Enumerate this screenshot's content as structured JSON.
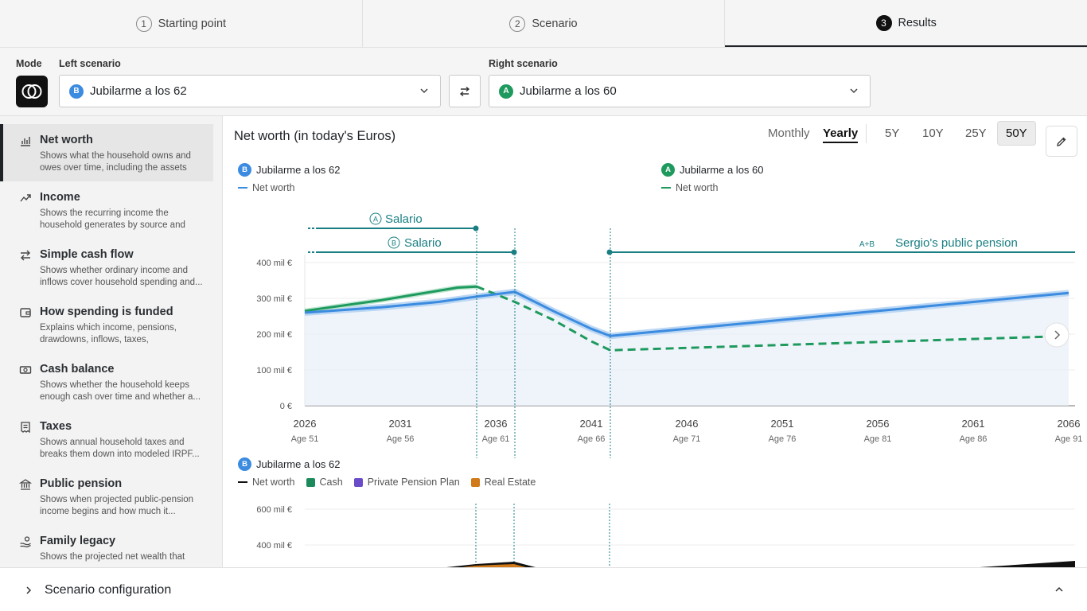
{
  "steps": [
    {
      "num": "1",
      "label": "Starting point"
    },
    {
      "num": "2",
      "label": "Scenario"
    },
    {
      "num": "3",
      "label": "Results"
    }
  ],
  "scenario_bar": {
    "mode_label": "Mode",
    "left_label": "Left scenario",
    "right_label": "Right scenario",
    "left_value": "Jubilarme a los 62",
    "left_badge": "B",
    "right_value": "Jubilarme a los 60",
    "right_badge": "A"
  },
  "sidebar": {
    "items": [
      {
        "title": "Net worth",
        "desc": "Shows what the household owns and owes over time, including the assets th...",
        "icon": "bar-chart-icon"
      },
      {
        "title": "Income",
        "desc": "Shows the recurring income the household generates by source and ho...",
        "icon": "trend-up-icon"
      },
      {
        "title": "Simple cash flow",
        "desc": "Shows whether ordinary income and inflows cover household spending and...",
        "icon": "arrows-exchange-icon"
      },
      {
        "title": "How spending is funded",
        "desc": "Explains which income, pensions, drawdowns, inflows, taxes, contribution...",
        "icon": "wallet-icon"
      },
      {
        "title": "Cash balance",
        "desc": "Shows whether the household keeps enough cash over time and whether a...",
        "icon": "banknote-icon"
      },
      {
        "title": "Taxes",
        "desc": "Shows annual household taxes and breaks them down into modeled IRPF...",
        "icon": "receipt-icon"
      },
      {
        "title": "Public pension",
        "desc": "Shows when projected public-pension income begins and how much it...",
        "icon": "bank-icon"
      },
      {
        "title": "Family legacy",
        "desc": "Shows the projected net wealth that",
        "icon": "hand-coins-icon"
      }
    ]
  },
  "main": {
    "title": "Net worth (in today's Euros)",
    "period_toggle": {
      "monthly": "Monthly",
      "yearly": "Yearly",
      "selected": "Yearly"
    },
    "ranges": [
      "5Y",
      "10Y",
      "25Y",
      "50Y"
    ],
    "selected_range": "50Y",
    "legend": {
      "left": {
        "badge": "B",
        "name": "Jubilarme a los 62",
        "series": "Net worth"
      },
      "right": {
        "badge": "A",
        "name": "Jubilarme a los 60",
        "series": "Net worth"
      }
    },
    "annotations": [
      {
        "badges": "A",
        "label": "Salario"
      },
      {
        "badges": "B",
        "label": "Salario"
      },
      {
        "badges": "A+B",
        "label": "Sergio's public pension"
      }
    ],
    "second_legend": {
      "badge": "B",
      "name": "Jubilarme a los 62",
      "items": [
        {
          "label": "Net worth",
          "color": "#111111"
        },
        {
          "label": "Cash",
          "color": "#1a8a5a"
        },
        {
          "label": "Private Pension Plan",
          "color": "#6a4bc8"
        },
        {
          "label": "Real Estate",
          "color": "#d07a1a"
        }
      ]
    }
  },
  "chart_data": [
    {
      "type": "line",
      "title": "Net worth (in today's Euros)",
      "x": [
        2026,
        2031,
        2036,
        2041,
        2046,
        2051,
        2056,
        2061,
        2066
      ],
      "x_tick_labels": [
        "2026",
        "2031",
        "2036",
        "2041",
        "2046",
        "2051",
        "2056",
        "2061",
        "2066"
      ],
      "x_sub_labels": [
        "Age 51",
        "Age 56",
        "Age 61",
        "Age 66",
        "Age 71",
        "Age 76",
        "Age 81",
        "Age 86",
        "Age 91"
      ],
      "y_tick_labels": [
        "0 €",
        "100 mil €",
        "200 mil €",
        "300 mil €",
        "400 mil €"
      ],
      "ylim": [
        0,
        400
      ],
      "series": [
        {
          "name": "Jubilarme a los 62",
          "color": "#3b8be0",
          "style": "solid",
          "points": [
            [
              2026,
              260
            ],
            [
              2030,
              275
            ],
            [
              2033,
              290
            ],
            [
              2035,
              305
            ],
            [
              2037,
              318
            ],
            [
              2039,
              265
            ],
            [
              2041,
              215
            ],
            [
              2042,
              195
            ],
            [
              2066,
              315
            ]
          ]
        },
        {
          "name": "Jubilarme a los 60",
          "color": "#1f9a5e",
          "style": "solid-then-dashed",
          "points": [
            [
              2026,
              265
            ],
            [
              2030,
              295
            ],
            [
              2034,
              330
            ],
            [
              2035,
              333
            ],
            [
              2037,
              290
            ],
            [
              2039,
              240
            ],
            [
              2041,
              180
            ],
            [
              2042,
              155
            ],
            [
              2066,
              195
            ]
          ]
        }
      ],
      "markers": [
        {
          "x": 2035
        },
        {
          "x": 2037
        },
        {
          "x": 2042
        }
      ]
    },
    {
      "type": "area",
      "title": "Jubilarme a los 62",
      "y_tick_labels": [
        "400 mil €",
        "600 mil €"
      ],
      "series": [
        {
          "name": "Net worth"
        },
        {
          "name": "Cash"
        },
        {
          "name": "Private Pension Plan"
        },
        {
          "name": "Real Estate"
        }
      ]
    }
  ],
  "bottom": {
    "title": "Scenario configuration"
  }
}
